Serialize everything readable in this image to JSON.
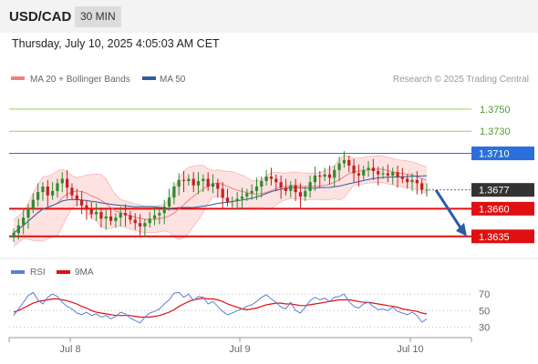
{
  "header": {
    "symbol": "USD/CAD",
    "timeframe": "30 MIN"
  },
  "timestamp": "Thursday, July 10, 2025 4:05:03 AM CET",
  "legend": {
    "ma20": "MA 20 + Bollinger Bands",
    "ma50": "MA 50",
    "credit": "Research © 2025 Trading Central"
  },
  "rsi_legend": {
    "rsi": "RSI",
    "ma": "9MA"
  },
  "colors": {
    "ma20": "#f08080",
    "ma50": "#2e5d9e",
    "resistance": "#9ccf6a",
    "pivot": "#2a6fdb",
    "support": "#e01010",
    "bull": "#2e8b2e",
    "bear": "#c81e1e",
    "band_fill": "#fde2e2",
    "arrow": "#2a5caa",
    "rsi_line": "#5b7fd6",
    "rsi_ma": "#e01010"
  },
  "chart_data": [
    {
      "type": "candlestick",
      "title": "USD/CAD",
      "x_ticks": [
        "Jul 8",
        "Jul 9",
        "Jul 10"
      ],
      "price_range": [
        1.362,
        1.3768
      ],
      "levels": [
        {
          "label": "1.3750",
          "value": 1.375,
          "kind": "resistance"
        },
        {
          "label": "1.3730",
          "value": 1.373,
          "kind": "resistance"
        },
        {
          "label": "1.3710",
          "value": 1.371,
          "kind": "pivot"
        },
        {
          "label": "1.3677",
          "value": 1.3677,
          "kind": "last"
        },
        {
          "label": "1.3660",
          "value": 1.366,
          "kind": "support"
        },
        {
          "label": "1.3635",
          "value": 1.3635,
          "kind": "support"
        }
      ],
      "close": [
        1.3638,
        1.3645,
        1.3652,
        1.366,
        1.3668,
        1.3675,
        1.368,
        1.3672,
        1.3676,
        1.3683,
        1.3687,
        1.3679,
        1.3672,
        1.3668,
        1.3663,
        1.366,
        1.3655,
        1.3657,
        1.3651,
        1.3653,
        1.3649,
        1.3652,
        1.3656,
        1.3654,
        1.365,
        1.3647,
        1.3644,
        1.3647,
        1.3651,
        1.3654,
        1.3656,
        1.3662,
        1.367,
        1.368,
        1.3686,
        1.3685,
        1.3687,
        1.3681,
        1.3685,
        1.3687,
        1.368,
        1.3683,
        1.3678,
        1.367,
        1.3666,
        1.3667,
        1.3669,
        1.3671,
        1.3674,
        1.3676,
        1.368,
        1.3685,
        1.3689,
        1.3687,
        1.3684,
        1.3679,
        1.3676,
        1.3681,
        1.3675,
        1.3671,
        1.3676,
        1.3684,
        1.369,
        1.3689,
        1.3691,
        1.3688,
        1.3695,
        1.3701,
        1.3704,
        1.3699,
        1.3692,
        1.369,
        1.3695,
        1.3697,
        1.3694,
        1.3691,
        1.3692,
        1.369,
        1.3693,
        1.3689,
        1.3687,
        1.3684,
        1.3686,
        1.3683,
        1.3677,
        1.3677
      ],
      "ma20_range": [
        1.3655,
        1.3692
      ],
      "ma50_range": [
        1.363,
        1.3684
      ],
      "projection": {
        "from": 1.3677,
        "to": 1.3635
      }
    },
    {
      "type": "line",
      "title": "RSI",
      "y_ticks": [
        70,
        50,
        30
      ],
      "ylim": [
        25,
        80
      ],
      "series": [
        {
          "name": "RSI",
          "values": [
            44,
            52,
            60,
            68,
            72,
            63,
            58,
            66,
            70,
            67,
            60,
            55,
            52,
            47,
            45,
            48,
            44,
            46,
            42,
            44,
            40,
            43,
            48,
            46,
            41,
            38,
            35,
            42,
            47,
            49,
            52,
            58,
            63,
            71,
            72,
            66,
            70,
            62,
            67,
            66,
            58,
            61,
            55,
            49,
            45,
            47,
            50,
            52,
            55,
            57,
            61,
            66,
            69,
            64,
            60,
            54,
            52,
            60,
            50,
            47,
            54,
            62,
            66,
            63,
            65,
            61,
            66,
            67,
            70,
            61,
            55,
            53,
            58,
            60,
            55,
            51,
            52,
            50,
            54,
            49,
            47,
            45,
            48,
            44,
            36,
            40
          ]
        },
        {
          "name": "9MA",
          "values": [
            48,
            50,
            53,
            56,
            59,
            61,
            62,
            63,
            64,
            64,
            63,
            62,
            60,
            58,
            55,
            53,
            50,
            48,
            47,
            46,
            45,
            44,
            44,
            44,
            44,
            43,
            42,
            42,
            42,
            43,
            44,
            46,
            48,
            51,
            55,
            58,
            61,
            63,
            64,
            65,
            64,
            64,
            63,
            61,
            58,
            56,
            54,
            52,
            51,
            52,
            53,
            55,
            57,
            58,
            59,
            59,
            58,
            58,
            57,
            56,
            56,
            57,
            58,
            59,
            60,
            61,
            62,
            63,
            63,
            63,
            62,
            61,
            60,
            60,
            59,
            58,
            57,
            56,
            55,
            54,
            52,
            51,
            50,
            49,
            47,
            46
          ]
        }
      ]
    }
  ]
}
